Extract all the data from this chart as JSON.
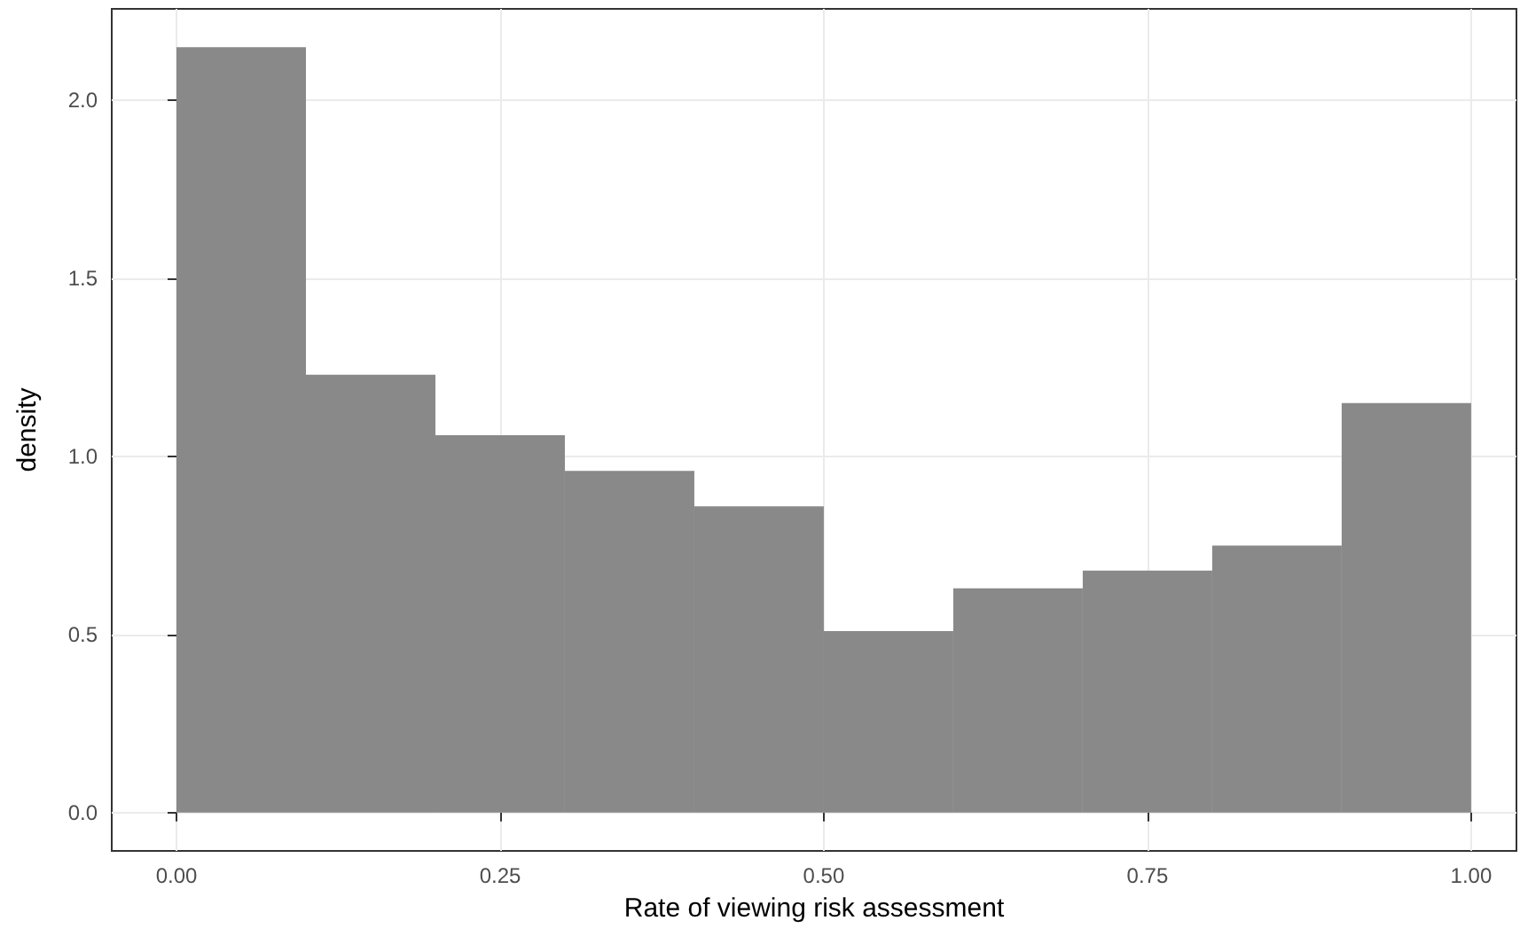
{
  "chart_data": {
    "type": "histogram",
    "xlabel": "Rate of viewing risk assessment",
    "ylabel": "density",
    "bins": [
      0,
      0.1,
      0.2,
      0.3,
      0.4,
      0.5,
      0.6,
      0.7,
      0.8,
      0.9,
      1.0
    ],
    "values": [
      2.15,
      1.23,
      1.06,
      0.96,
      0.86,
      0.51,
      0.63,
      0.68,
      0.75,
      1.15
    ],
    "color": "#898989",
    "xlim": [
      -0.05,
      1.035
    ],
    "ylim": [
      -0.1075,
      2.2575
    ],
    "xticks": [
      {
        "value": 0,
        "label": "0.00"
      },
      {
        "value": 0.25,
        "label": "0.25"
      },
      {
        "value": 0.5,
        "label": "0.50"
      },
      {
        "value": 0.75,
        "label": "0.75"
      },
      {
        "value": 1,
        "label": "1.00"
      }
    ],
    "yticks": [
      {
        "value": 0,
        "label": "0.0"
      },
      {
        "value": 0.5,
        "label": "0.5"
      },
      {
        "value": 1,
        "label": "1.0"
      },
      {
        "value": 1.5,
        "label": "1.5"
      },
      {
        "value": 2,
        "label": "2.0"
      }
    ],
    "grid": true
  }
}
